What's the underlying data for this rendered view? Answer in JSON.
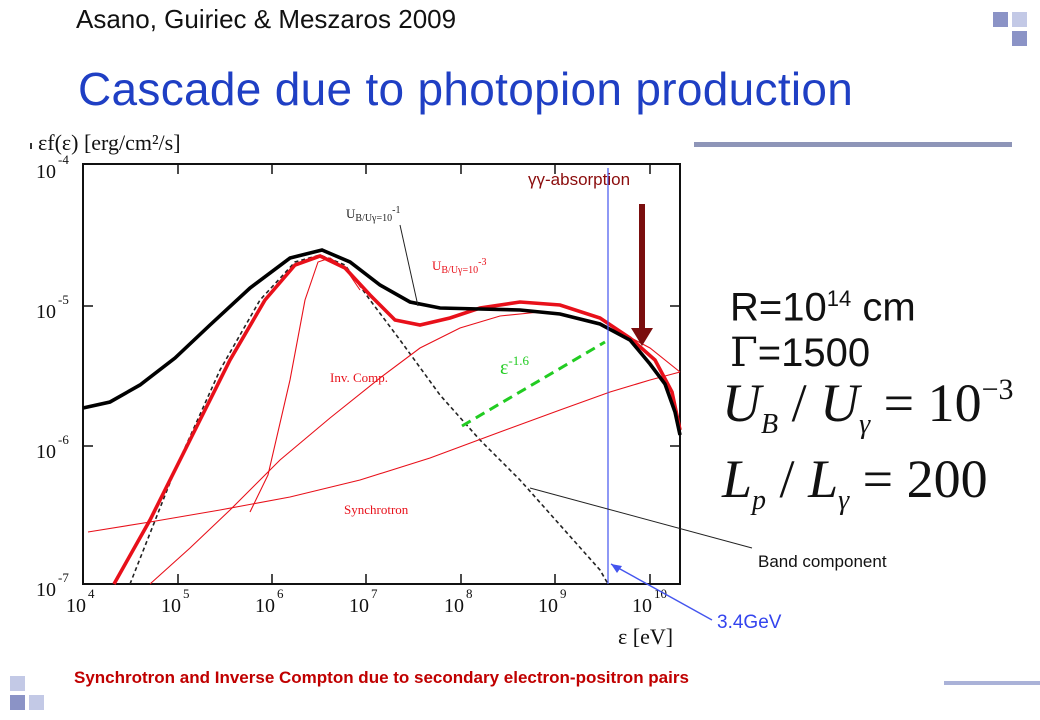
{
  "header": {
    "citation": "Asano, Guiriec & Meszaros 2009",
    "title": "Cascade due to photopion production"
  },
  "plot": {
    "ylabel": "εf(ε) [erg/cm²/s]",
    "xlabel": "ε [eV]",
    "x_ticks": [
      "10",
      "10",
      "10",
      "10",
      "10",
      "10",
      "10"
    ],
    "x_tick_exps": [
      "4",
      "5",
      "6",
      "7",
      "8",
      "9",
      "10"
    ],
    "y_ticks": [
      "10",
      "10",
      "10",
      "10"
    ],
    "y_tick_exps": [
      "-4",
      "-5",
      "-6",
      "-7"
    ],
    "curve_labels": {
      "ub_uy_1": "U",
      "ub_uy_1_expr": "B/Uγ=10",
      "ub_uy_1_exp": "-1",
      "ub_uy_3": "U",
      "ub_uy_3_expr": "B/Uγ=10",
      "ub_uy_3_exp": "-3",
      "inv_comp": "Inv. Comp.",
      "synchrotron": "Synchrotron",
      "slope": "ε",
      "slope_exp": "-1.6"
    },
    "colors": {
      "total_black": "#000000",
      "total_red": "#e8101a",
      "components": "#e8101a",
      "band": "#222222",
      "slope_line": "#22cc22",
      "cutoff_line": "#4455ee",
      "arrow": "#7a0e0e"
    }
  },
  "annotations": {
    "gg_absorption": "γγ-absorption",
    "band_component": "Band component",
    "cutoff_energy": "3.4GeV",
    "radius_prefix": "R=10",
    "radius_exp": "14",
    "radius_unit": " cm",
    "lorentz_symbol": "Γ",
    "lorentz_value": "=1500",
    "eq1": {
      "a": "U",
      "a_sub": "B",
      "slash": " / ",
      "b": "U",
      "b_sub": "γ",
      "rhs": " = 10",
      "rhs_exp": "−3"
    },
    "eq2": {
      "a": "L",
      "a_sub": "p",
      "slash": " / ",
      "b": "L",
      "b_sub": "γ",
      "rhs": " = 200"
    }
  },
  "caption": "Synchrotron and Inverse Compton due to secondary electron-positron pairs"
}
